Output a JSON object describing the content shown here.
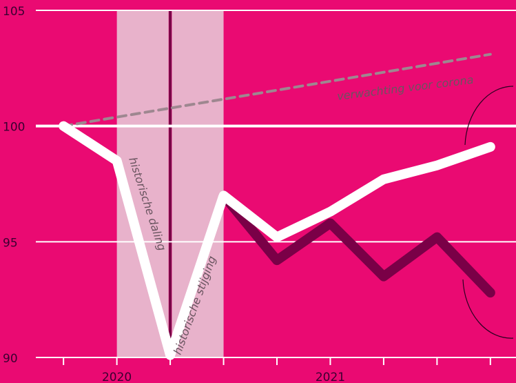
{
  "chart_data": {
    "type": "line",
    "xlim": [
      -1.19,
      8.48
    ],
    "xticks": [
      {
        "value": 1,
        "label": "2020"
      },
      {
        "value": 5,
        "label": "2021"
      }
    ],
    "xminor_ticks": [
      0,
      1,
      2,
      3,
      4,
      5,
      6,
      7,
      8
    ],
    "ylim": [
      90,
      105
    ],
    "yticks": [
      90,
      95,
      100,
      105
    ],
    "baseline": 100,
    "grid": true,
    "background": "#ea0a72",
    "bands": [
      {
        "x": [
          1,
          1.97
        ],
        "color": "#e8b2cb"
      },
      {
        "x": [
          2.03,
          3
        ],
        "color": "#e8b2cb"
      }
    ],
    "marker_line": {
      "x": 2,
      "color": "#7a0047"
    },
    "series": [
      {
        "color": "#9e8790",
        "dashed": true,
        "x": [
          0,
          8
        ],
        "values": [
          100,
          103.1
        ]
      },
      {
        "color": "#7a0047",
        "x": [
          3,
          4,
          5,
          6,
          7,
          8
        ],
        "values": [
          97,
          94.2,
          95.8,
          93.5,
          95.2,
          92.8
        ]
      },
      {
        "color": "#ffffff",
        "x": [
          0,
          1,
          2,
          3,
          4,
          5,
          6,
          7,
          8
        ],
        "values": [
          100,
          98.5,
          90.1,
          97,
          95.2,
          96.3,
          97.7,
          98.3,
          99.1
        ]
      }
    ],
    "annotations": [
      {
        "text": "historische daling"
      },
      {
        "text": "historische stijging"
      },
      {
        "text": "verwachting voor corona"
      }
    ]
  }
}
